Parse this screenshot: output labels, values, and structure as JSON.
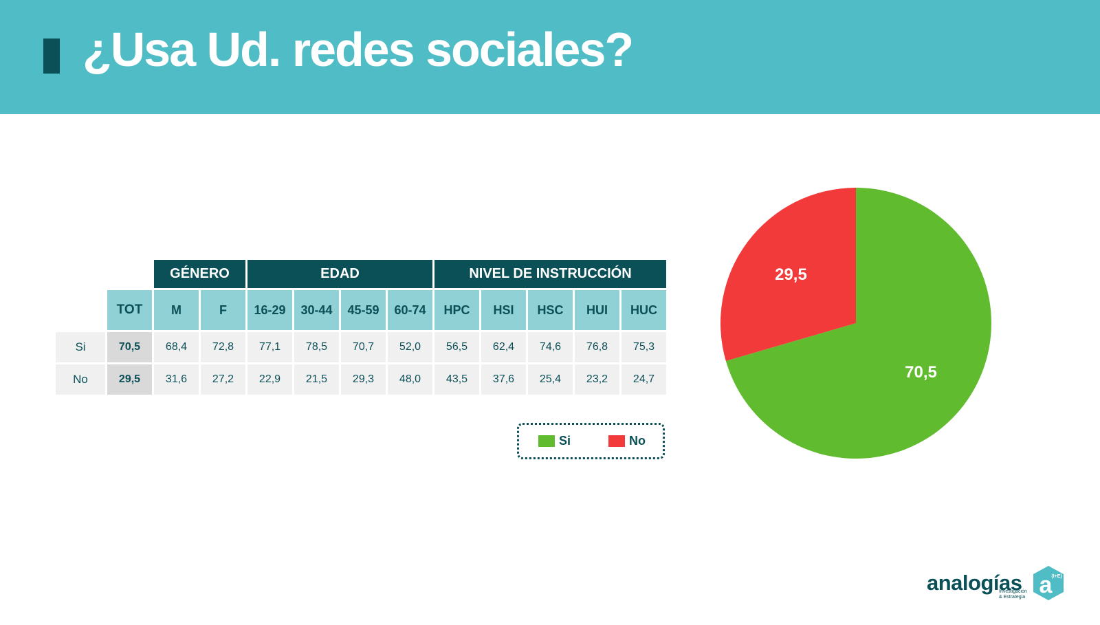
{
  "title": "¿Usa Ud. redes sociales?",
  "colors": {
    "header": "#4fbcc6",
    "dark": "#0b4f57",
    "si": "#61bb2f",
    "no": "#f23a3a"
  },
  "table": {
    "groups": [
      "GÉNERO",
      "EDAD",
      "NIVEL DE INSTRUCCIÓN"
    ],
    "columns": [
      "TOT",
      "M",
      "F",
      "16-29",
      "30-44",
      "45-59",
      "60-74",
      "HPC",
      "HSI",
      "HSC",
      "HUI",
      "HUC"
    ],
    "rows": [
      {
        "label": "Si",
        "values": [
          "70,5",
          "68,4",
          "72,8",
          "77,1",
          "78,5",
          "70,7",
          "52,0",
          "56,5",
          "62,4",
          "74,6",
          "76,8",
          "75,3"
        ]
      },
      {
        "label": "No",
        "values": [
          "29,5",
          "31,6",
          "27,2",
          "22,9",
          "21,5",
          "29,3",
          "48,0",
          "43,5",
          "37,6",
          "25,4",
          "23,2",
          "24,7"
        ]
      }
    ]
  },
  "legend": [
    {
      "label": "Si",
      "color": "#61bb2f"
    },
    {
      "label": "No",
      "color": "#f23a3a"
    }
  ],
  "chart_data": {
    "type": "pie",
    "categories": [
      "Si",
      "No"
    ],
    "values": [
      70.5,
      29.5
    ],
    "labels": [
      "70,5",
      "29,5"
    ],
    "colors": [
      "#61bb2f",
      "#f23a3a"
    ]
  },
  "logo": {
    "name": "analogías",
    "sub1": "Investigación",
    "sub2": "& Estrategia",
    "mark": "a",
    "mark_sup": "(I+E)"
  }
}
